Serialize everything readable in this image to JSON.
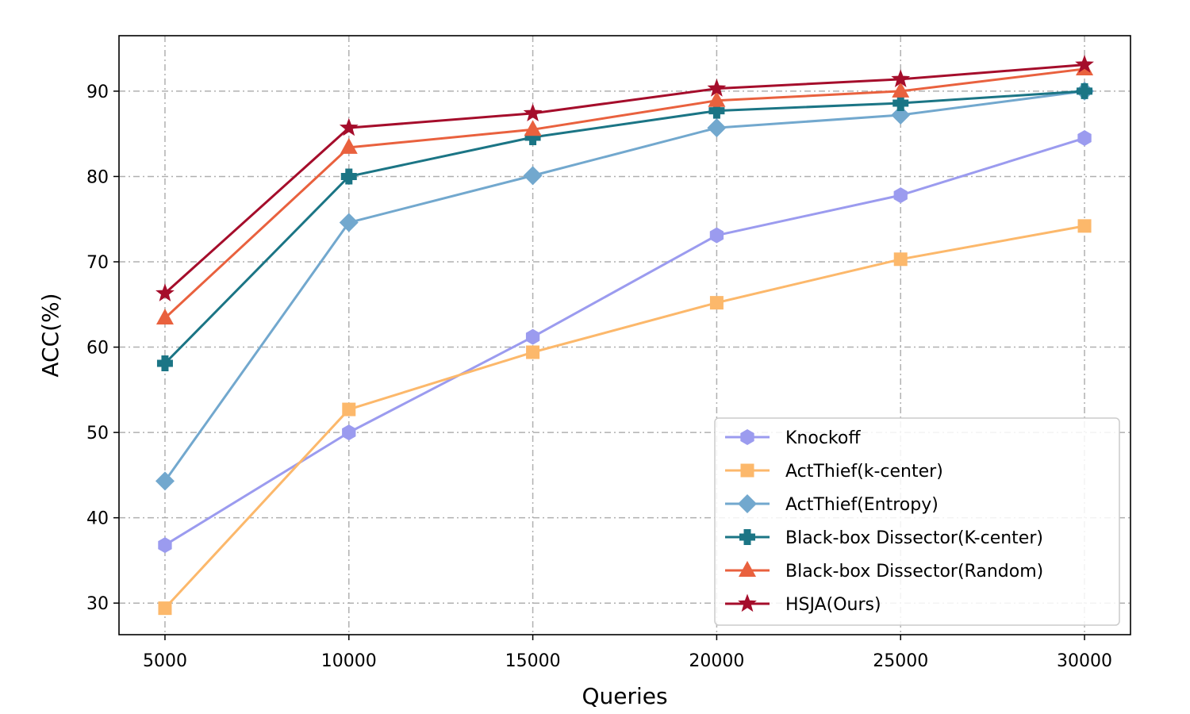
{
  "chart_data": {
    "type": "line",
    "xlabel": "Queries",
    "ylabel": "ACC(%)",
    "x": [
      5000,
      10000,
      15000,
      20000,
      25000,
      30000
    ],
    "x_ticks": [
      5000,
      10000,
      15000,
      20000,
      25000,
      30000
    ],
    "y_ticks": [
      30,
      40,
      50,
      60,
      70,
      80,
      90
    ],
    "xlim": [
      3750,
      31250
    ],
    "ylim": [
      26.3,
      96.5
    ],
    "grid": true,
    "legend_position": "bottom-right",
    "series": [
      {
        "name": "Knockoff",
        "color": "#9b9bef",
        "marker": "hexagon",
        "values": [
          36.8,
          50.0,
          61.2,
          73.1,
          77.8,
          84.5
        ]
      },
      {
        "name": "ActThief(k-center)",
        "color": "#fcb86b",
        "marker": "square",
        "values": [
          29.4,
          52.7,
          59.4,
          65.2,
          70.3,
          74.2
        ]
      },
      {
        "name": "ActThief(Entropy)",
        "color": "#72a8ce",
        "marker": "diamond",
        "values": [
          44.3,
          74.6,
          80.1,
          85.7,
          87.2,
          90.0
        ]
      },
      {
        "name": "Black-box Dissector(K-center)",
        "color": "#1b7585",
        "marker": "plus",
        "values": [
          58.1,
          80.0,
          84.6,
          87.7,
          88.6,
          90.0
        ]
      },
      {
        "name": "Black-box Dissector(Random)",
        "color": "#e9613e",
        "marker": "triangle",
        "values": [
          63.4,
          83.4,
          85.5,
          88.9,
          90.0,
          92.6
        ]
      },
      {
        "name": "HSJA(Ours)",
        "color": "#a50d2b",
        "marker": "star",
        "values": [
          66.3,
          85.7,
          87.4,
          90.3,
          91.4,
          93.1
        ]
      }
    ]
  }
}
